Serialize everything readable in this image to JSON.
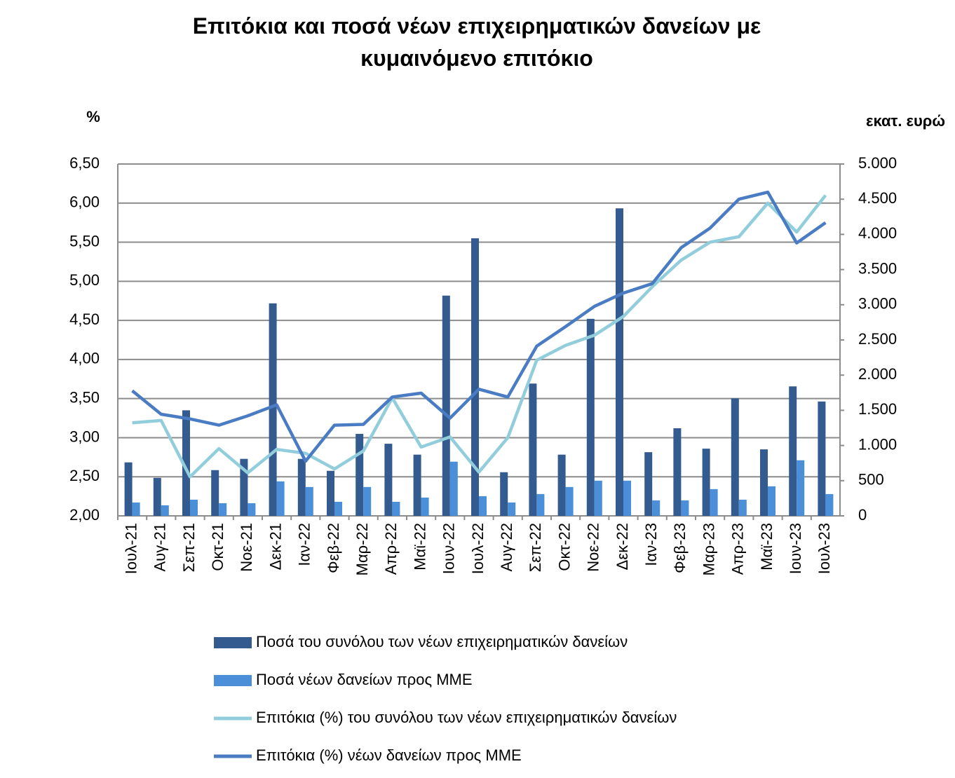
{
  "chart_data": {
    "type": "combo",
    "title": "Επιτόκια και ποσά νέων επιχειρηματικών δανείων με κυμαινόμενο επιτόκιο",
    "y_label": "%",
    "y2_label": "εκατ. ευρώ",
    "categories": [
      "Ιουλ-21",
      "Αυγ-21",
      "Σεπ-21",
      "Οκτ-21",
      "Νοε-21",
      "Δεκ-21",
      "Ιαν-22",
      "Φεβ-22",
      "Μαρ-22",
      "Απρ-22",
      "Μαϊ-22",
      "Ιουν-22",
      "Ιουλ-22",
      "Αυγ-22",
      "Σεπ-22",
      "Οκτ-22",
      "Νοε-22",
      "Δεκ-22",
      "Ιαν-23",
      "Φεβ-23",
      "Μαρ-23",
      "Απρ-23",
      "Μαϊ-23",
      "Ιουν-23",
      "Ιουλ-23"
    ],
    "series": [
      {
        "name": "Ποσά του συνόλου των νέων επιχειρηματικών δανείων",
        "type": "bar",
        "axis": "y2",
        "color": "#335b8f",
        "values": [
          760,
          540,
          1500,
          650,
          810,
          3020,
          810,
          640,
          1165,
          1025,
          870,
          3130,
          3945,
          620,
          1880,
          870,
          2800,
          4370,
          905,
          1245,
          955,
          1670,
          945,
          1840,
          1625
        ]
      },
      {
        "name": "Ποσά νέων δανείων προς ΜΜΕ",
        "type": "bar",
        "axis": "y2",
        "color": "#4a8fd8",
        "values": [
          190,
          150,
          230,
          180,
          180,
          490,
          410,
          200,
          410,
          200,
          260,
          770,
          280,
          190,
          310,
          410,
          500,
          500,
          220,
          220,
          380,
          230,
          420,
          790,
          310
        ]
      },
      {
        "name": "Επιτόκια (%) του συνόλου των νέων επιχειρηματικών δανείων",
        "type": "line",
        "color": "#92cddc",
        "values": [
          3.19,
          3.22,
          2.5,
          2.86,
          2.55,
          2.85,
          2.8,
          2.6,
          2.83,
          3.51,
          2.88,
          3.01,
          2.56,
          3.0,
          3.99,
          4.18,
          4.31,
          4.55,
          4.93,
          5.27,
          5.5,
          5.57,
          6.0,
          5.63,
          6.1
        ]
      },
      {
        "name": "Επιτόκια (%) νέων δανείων προς ΜΜΕ",
        "type": "line",
        "color": "#4a7cc4",
        "values": [
          3.6,
          3.3,
          3.24,
          3.16,
          3.28,
          3.42,
          2.7,
          3.16,
          3.17,
          3.52,
          3.57,
          3.25,
          3.62,
          3.52,
          4.17,
          4.42,
          4.68,
          4.85,
          4.97,
          5.43,
          5.68,
          6.05,
          6.14,
          5.49,
          5.75
        ]
      }
    ],
    "ylim": [
      2,
      6.5
    ],
    "yticks": [
      {
        "value": 2,
        "label": "2,00"
      },
      {
        "value": 2.5,
        "label": "2,50"
      },
      {
        "value": 3,
        "label": "3,00"
      },
      {
        "value": 3.5,
        "label": "3,50"
      },
      {
        "value": 4,
        "label": "4,00"
      },
      {
        "value": 4.5,
        "label": "4,50"
      },
      {
        "value": 5,
        "label": "5,00"
      },
      {
        "value": 5.5,
        "label": "5,50"
      },
      {
        "value": 6,
        "label": "6,00"
      },
      {
        "value": 6.5,
        "label": "6,50"
      }
    ],
    "y2lim": [
      0,
      5000
    ],
    "y2ticks": [
      0,
      500,
      {
        "value": 1000,
        "label": "1.000"
      },
      {
        "value": 1500,
        "label": "1.500"
      },
      {
        "value": 2000,
        "label": "2.000"
      },
      {
        "value": 2500,
        "label": "2.500"
      },
      {
        "value": 3000,
        "label": "3.000"
      },
      {
        "value": 3500,
        "label": "3.500"
      },
      {
        "value": 4000,
        "label": "4.000"
      },
      {
        "value": 4500,
        "label": "4.500"
      },
      {
        "value": 5000,
        "label": "5.000"
      }
    ],
    "grid": true,
    "legend": "bottom"
  }
}
